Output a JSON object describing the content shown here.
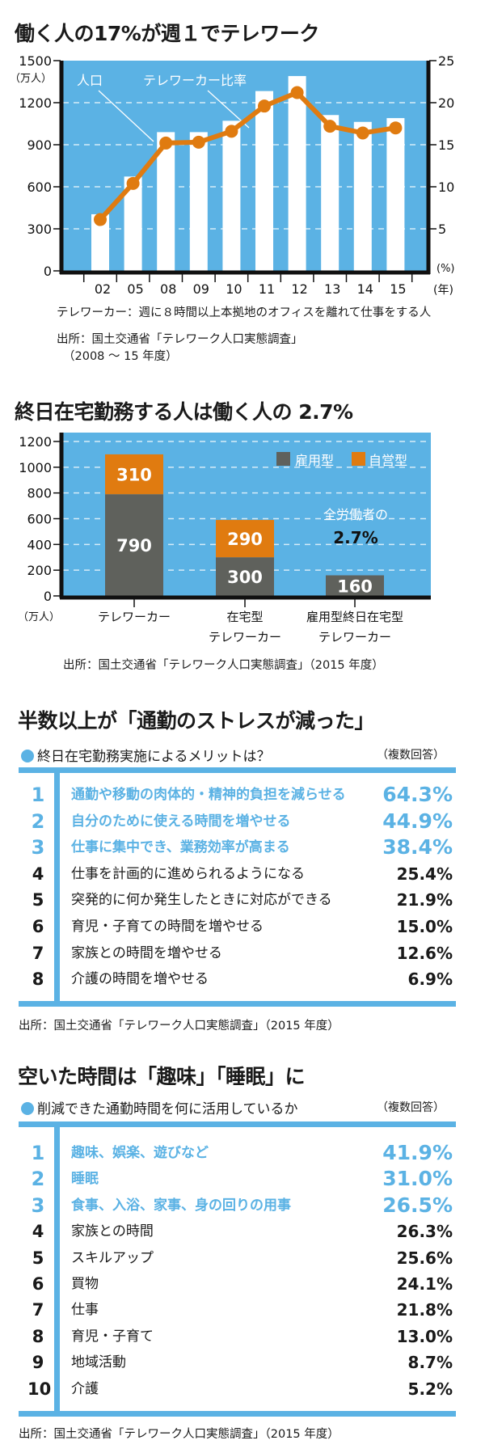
{
  "colors": {
    "blue": "#5bb2e4",
    "orange": "#e07b10",
    "gray": "#5f615c",
    "white": "#ffffff",
    "black": "#111111"
  },
  "section1": {
    "title": "働く人の17%が週１でテレワーク",
    "unit_left": "（万人）",
    "unit_right": "(%)",
    "unit_x": "(年)",
    "annotation_bar": "人口",
    "annotation_line": "テレワーカー比率",
    "footnote": "テレワーカー：週に８時間以上本拠地のオフィスを離れて仕事をする人",
    "source_line1": "出所：国土交通省「テレワーク人口実態調査」",
    "source_line2": "（2008 〜 15 年度）"
  },
  "section2": {
    "title": "終日在宅勤務する人は働く人の 2.7%",
    "unit_left": "（万人）",
    "legend_employed": "雇用型",
    "legend_self": "自営型",
    "annotation_text": "全労働者の",
    "annotation_value": "2.7%",
    "source": "出所：国土交通省「テレワーク人口実態調査」（2015 年度）"
  },
  "chart_data": [
    {
      "type": "bar+line",
      "title": "働く人の17%が週１でテレワーク",
      "categories": [
        "02",
        "05",
        "08",
        "09",
        "10",
        "11",
        "12",
        "13",
        "14",
        "15"
      ],
      "series": [
        {
          "name": "人口",
          "axis": "left",
          "type": "bar",
          "values": [
            404,
            673,
            990,
            990,
            1071,
            1283,
            1390,
            1112,
            1063,
            1090
          ]
        },
        {
          "name": "テレワーカー比率",
          "axis": "right",
          "type": "line",
          "values": [
            6.1,
            10.4,
            15.2,
            15.3,
            16.6,
            19.6,
            21.2,
            17.2,
            16.4,
            17.0
          ]
        }
      ],
      "y_left": {
        "label": "（万人）",
        "range": [
          0,
          1500
        ],
        "ticks": [
          "0",
          "300",
          "600",
          "900",
          "1200",
          "1500"
        ]
      },
      "y_right": {
        "label": "(%)",
        "range": [
          0,
          25
        ],
        "ticks": [
          "5",
          "10",
          "15",
          "20",
          "25"
        ]
      },
      "xlabel": "(年)",
      "grid": "dashed horizontal"
    },
    {
      "type": "stacked-bar",
      "title": "終日在宅勤務する人は働く人の 2.7%",
      "categories": [
        {
          "line1": "テレワーカー",
          "line2": ""
        },
        {
          "line1": "在宅型",
          "line2": "テレワーカー"
        },
        {
          "line1": "雇用型終日在宅型",
          "line2": "テレワーカー"
        }
      ],
      "series": [
        {
          "name": "雇用型",
          "values": [
            790,
            300,
            160
          ],
          "labels": [
            "790",
            "300",
            "160"
          ]
        },
        {
          "name": "自営型",
          "values": [
            310,
            290,
            0
          ],
          "labels": [
            "310",
            "290",
            ""
          ]
        }
      ],
      "y": {
        "label": "（万人）",
        "range": [
          0,
          1200
        ],
        "ticks": [
          "0",
          "200",
          "400",
          "600",
          "800",
          "1000",
          "1200"
        ]
      },
      "legend": "top-right",
      "grid": "dashed horizontal"
    },
    {
      "type": "table",
      "title": "半数以上が「通勤のストレスが減った」",
      "subtitle": "終日在宅勤務実施によるメリットは？",
      "note": "（複数回答）",
      "rows": [
        {
          "rank": "1",
          "label": "通勤や移動の肉体的・精神的負担を減らせる",
          "value": "64.3%"
        },
        {
          "rank": "2",
          "label": "自分のために使える時間を増やせる",
          "value": "44.9%"
        },
        {
          "rank": "3",
          "label": "仕事に集中でき、業務効率が高まる",
          "value": "38.4%"
        },
        {
          "rank": "4",
          "label": "仕事を計画的に進められるようになる",
          "value": "25.4%"
        },
        {
          "rank": "5",
          "label": "突発的に何か発生したときに対応ができる",
          "value": "21.9%"
        },
        {
          "rank": "6",
          "label": "育児・子育ての時間を増やせる",
          "value": "15.0%"
        },
        {
          "rank": "7",
          "label": "家族との時間を増やせる",
          "value": "12.6%"
        },
        {
          "rank": "8",
          "label": "介護の時間を増やせる",
          "value": "6.9%"
        }
      ],
      "source": "出所：国土交通省「テレワーク人口実態調査」（2015 年度）"
    },
    {
      "type": "table",
      "title": "空いた時間は「趣味」「睡眠」に",
      "subtitle": "削減できた通勤時間を何に活用しているか",
      "note": "（複数回答）",
      "rows": [
        {
          "rank": "1",
          "label": "趣味、娯楽、遊びなど",
          "value": "41.9%"
        },
        {
          "rank": "2",
          "label": "睡眠",
          "value": "31.0%"
        },
        {
          "rank": "3",
          "label": "食事、入浴、家事、身の回りの用事",
          "value": "26.5%"
        },
        {
          "rank": "4",
          "label": "家族との時間",
          "value": "26.3%"
        },
        {
          "rank": "5",
          "label": "スキルアップ",
          "value": "25.6%"
        },
        {
          "rank": "6",
          "label": "買物",
          "value": "24.1%"
        },
        {
          "rank": "7",
          "label": "仕事",
          "value": "21.8%"
        },
        {
          "rank": "8",
          "label": "育児・子育て",
          "value": "13.0%"
        },
        {
          "rank": "9",
          "label": "地域活動",
          "value": "8.7%"
        },
        {
          "rank": "10",
          "label": "介護",
          "value": "5.2%"
        }
      ],
      "source": "出所：国土交通省「テレワーク人口実態調査」（2015 年度）"
    }
  ]
}
